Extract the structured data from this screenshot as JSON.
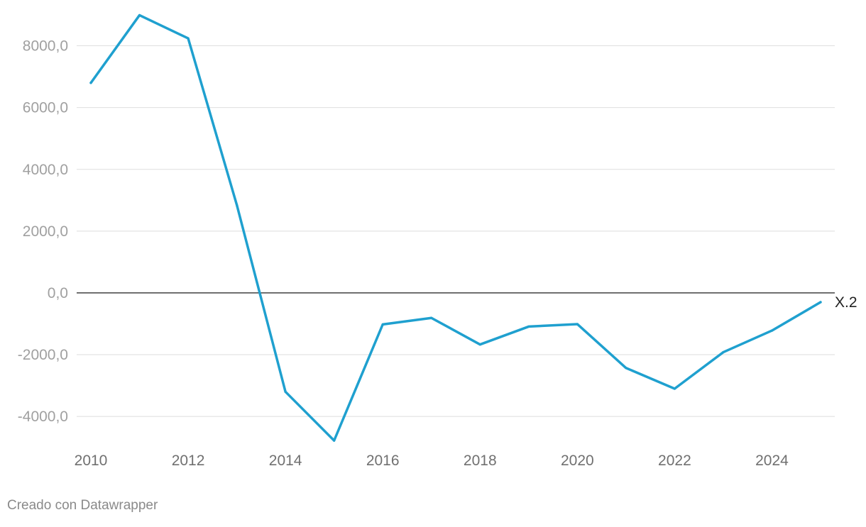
{
  "chart_data": {
    "type": "line",
    "title": "",
    "xlabel": "",
    "ylabel": "",
    "x": [
      2010,
      2011,
      2012,
      2013,
      2014,
      2015,
      2016,
      2017,
      2018,
      2019,
      2020,
      2021,
      2022,
      2023,
      2024,
      2025
    ],
    "series": [
      {
        "name": "X.2",
        "color": "#1fa0cf",
        "values": [
          6800,
          8990,
          8240,
          2850,
          -3200,
          -4780,
          -1020,
          -810,
          -1670,
          -1090,
          -1010,
          -2430,
          -3100,
          -1920,
          -1220,
          -300
        ]
      }
    ],
    "xlim": [
      2010,
      2025
    ],
    "ylim": [
      -4800,
      9000
    ],
    "y_ticks": [
      8000,
      6000,
      4000,
      2000,
      0,
      -2000,
      -4000
    ],
    "y_tick_labels": [
      "8000,0",
      "6000,0",
      "4000,0",
      "2000,0",
      "0,0",
      "-2000,0",
      "-4000,0"
    ],
    "x_ticks": [
      2010,
      2012,
      2014,
      2016,
      2018,
      2020,
      2022,
      2024
    ],
    "x_tick_labels": [
      "2010",
      "2012",
      "2014",
      "2016",
      "2018",
      "2020",
      "2022",
      "2024"
    ],
    "grid": true,
    "zero_line": true,
    "legend": "none"
  },
  "credit": "Creado con Datawrapper"
}
